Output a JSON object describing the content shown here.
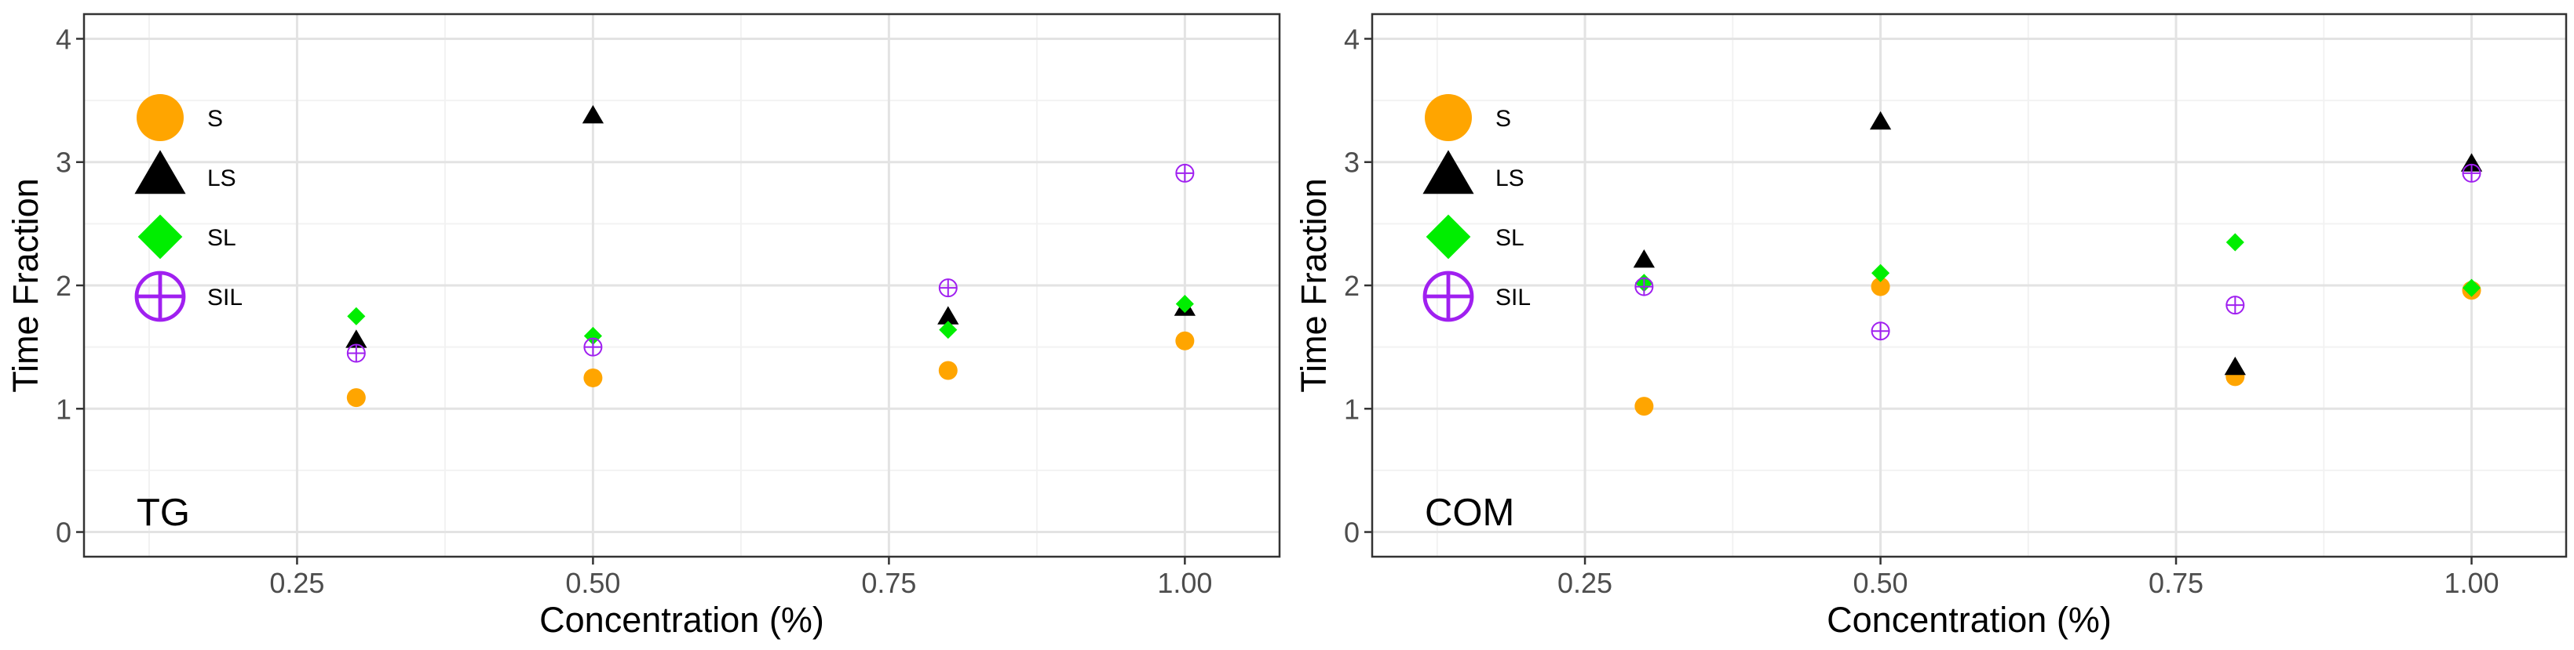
{
  "colors": {
    "S": "#FFA500",
    "LS": "#000000",
    "SL": "#00EE00",
    "SIL": "#A020F0",
    "grid_major": "#e3e3e3",
    "grid_minor": "#f2f2f2",
    "frame": "#333333",
    "tick_text": "#4d4d4d"
  },
  "chart_data": [
    {
      "type": "scatter",
      "panel_label": "TG",
      "xlabel": "Concentration (%)",
      "ylabel": "Time Fraction",
      "xlim": [
        0.07,
        1.08
      ],
      "ylim": [
        -0.2,
        4.2
      ],
      "x_ticks": [
        0.25,
        0.5,
        0.75,
        1.0
      ],
      "x_tick_labels": [
        "0.25",
        "0.50",
        "0.75",
        "1.00"
      ],
      "y_ticks": [
        0,
        1,
        2,
        3,
        4
      ],
      "y_tick_labels": [
        "0",
        "1",
        "2",
        "3",
        "4"
      ],
      "legend": {
        "position": "top-left",
        "entries": [
          "S",
          "LS",
          "SL",
          "SIL"
        ]
      },
      "series": [
        {
          "name": "S",
          "marker": "circle",
          "x": [
            0.3,
            0.5,
            0.8,
            1.0
          ],
          "y": [
            1.09,
            1.25,
            1.31,
            1.55
          ]
        },
        {
          "name": "LS",
          "marker": "triangle",
          "x": [
            0.3,
            0.5,
            0.8,
            1.0
          ],
          "y": [
            1.55,
            3.37,
            1.74,
            1.81
          ]
        },
        {
          "name": "SL",
          "marker": "diamond",
          "x": [
            0.3,
            0.5,
            0.8,
            1.0
          ],
          "y": [
            1.75,
            1.59,
            1.64,
            1.85
          ]
        },
        {
          "name": "SIL",
          "marker": "circle-plus",
          "x": [
            0.3,
            0.5,
            0.8,
            1.0
          ],
          "y": [
            1.45,
            1.5,
            1.98,
            2.91
          ]
        }
      ]
    },
    {
      "type": "scatter",
      "panel_label": "COM",
      "xlabel": "Concentration (%)",
      "ylabel": "Time Fraction",
      "xlim": [
        0.07,
        1.08
      ],
      "ylim": [
        -0.2,
        4.2
      ],
      "x_ticks": [
        0.25,
        0.5,
        0.75,
        1.0
      ],
      "x_tick_labels": [
        "0.25",
        "0.50",
        "0.75",
        "1.00"
      ],
      "y_ticks": [
        0,
        1,
        2,
        3,
        4
      ],
      "y_tick_labels": [
        "0",
        "1",
        "2",
        "3",
        "4"
      ],
      "legend": {
        "position": "top-left",
        "entries": [
          "S",
          "LS",
          "SL",
          "SIL"
        ]
      },
      "series": [
        {
          "name": "S",
          "marker": "circle",
          "x": [
            0.3,
            0.5,
            0.8,
            1.0
          ],
          "y": [
            1.02,
            1.99,
            1.26,
            1.96
          ]
        },
        {
          "name": "LS",
          "marker": "triangle",
          "x": [
            0.3,
            0.5,
            0.8,
            1.0
          ],
          "y": [
            2.2,
            3.32,
            1.33,
            2.98
          ]
        },
        {
          "name": "SL",
          "marker": "diamond",
          "x": [
            0.3,
            0.5,
            0.8,
            1.0
          ],
          "y": [
            2.02,
            2.1,
            2.35,
            1.98
          ]
        },
        {
          "name": "SIL",
          "marker": "circle-plus",
          "x": [
            0.3,
            0.5,
            0.8,
            1.0
          ],
          "y": [
            1.99,
            1.63,
            1.84,
            2.91
          ]
        }
      ]
    }
  ]
}
